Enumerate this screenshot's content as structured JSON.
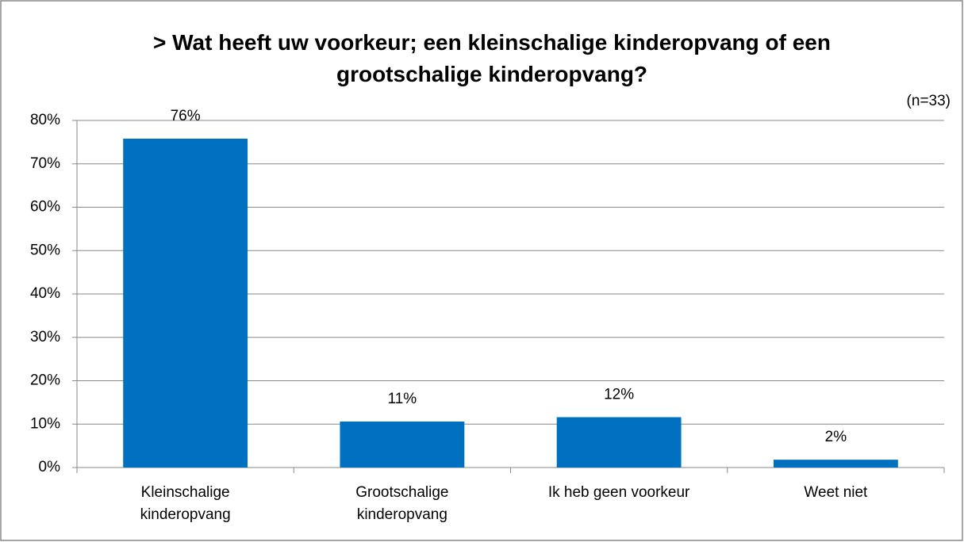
{
  "chart_data": {
    "type": "bar",
    "title": "> Wat heeft uw voorkeur; een kleinschalige kinderopvang of een grootschalige kinderopvang?",
    "annotation": "(n=33)",
    "categories": [
      "Kleinschalige kinderopvang",
      "Grootschalige kinderopvang",
      "Ik heb geen voorkeur",
      "Weet niet"
    ],
    "values": [
      75.8,
      10.6,
      11.6,
      1.8
    ],
    "value_labels": [
      "76%",
      "11%",
      "12%",
      "2%"
    ],
    "color": "#0070c0",
    "ylim": [
      0,
      80
    ],
    "yticks": [
      {
        "value": 0,
        "label": "0%"
      },
      {
        "value": 10,
        "label": "10%"
      },
      {
        "value": 20,
        "label": "20%"
      },
      {
        "value": 30,
        "label": "30%"
      },
      {
        "value": 40,
        "label": "40%"
      },
      {
        "value": 50,
        "label": "50%"
      },
      {
        "value": 60,
        "label": "60%"
      },
      {
        "value": 70,
        "label": "70%"
      },
      {
        "value": 80,
        "label": "80%"
      }
    ],
    "grid": true
  }
}
